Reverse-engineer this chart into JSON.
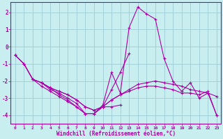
{
  "xlabel": "Windchill (Refroidissement éolien,°C)",
  "ylabel": "",
  "bg_color": "#c8eef0",
  "line_color": "#aa00aa",
  "grid_color": "#9eccd4",
  "xlim": [
    -0.5,
    23.5
  ],
  "ylim": [
    -4.5,
    2.6
  ],
  "xticks": [
    0,
    1,
    2,
    3,
    4,
    5,
    6,
    7,
    8,
    9,
    10,
    11,
    12,
    13,
    14,
    15,
    16,
    17,
    18,
    19,
    20,
    21,
    22,
    23
  ],
  "yticks": [
    -4,
    -3,
    -2,
    -1,
    0,
    1,
    2
  ],
  "series": [
    [
      -0.5,
      -1.0,
      -1.9,
      -2.1,
      -2.4,
      -2.8,
      -3.1,
      -3.5,
      -3.9,
      -3.9,
      -3.4,
      -1.5,
      -2.7,
      1.1,
      2.3,
      1.9,
      1.6,
      -0.7,
      -2.0,
      -2.6,
      -2.1,
      -3.0,
      -2.7,
      -4.0
    ],
    [
      null,
      null,
      -1.9,
      -2.3,
      -2.6,
      -2.9,
      -3.2,
      -3.5,
      -3.9,
      -3.9,
      -3.5,
      -3.5,
      -3.4,
      null,
      null,
      null,
      null,
      null,
      null,
      null,
      null,
      null,
      null,
      null
    ],
    [
      null,
      null,
      null,
      -2.1,
      -2.5,
      -2.7,
      -3.0,
      -3.3,
      -3.9,
      -3.9,
      -3.5,
      -2.5,
      -1.5,
      -0.4,
      null,
      null,
      null,
      null,
      null,
      null,
      null,
      null,
      null,
      null
    ],
    [
      -0.5,
      -1.0,
      -1.9,
      -2.1,
      -2.4,
      -2.6,
      -2.8,
      -3.1,
      -3.5,
      -3.7,
      -3.5,
      -3.1,
      -2.8,
      -2.5,
      -2.2,
      -2.1,
      -2.0,
      -2.1,
      -2.2,
      -2.3,
      -2.5,
      -2.6,
      -2.7,
      -2.9
    ],
    [
      -0.5,
      -1.0,
      -1.9,
      -2.1,
      -2.4,
      -2.6,
      -2.8,
      -3.1,
      -3.5,
      -3.7,
      -3.5,
      -3.1,
      -2.8,
      -2.6,
      -2.4,
      -2.3,
      -2.3,
      -2.4,
      -2.5,
      -2.7,
      -2.7,
      -2.8,
      -2.6,
      -4.0
    ]
  ]
}
